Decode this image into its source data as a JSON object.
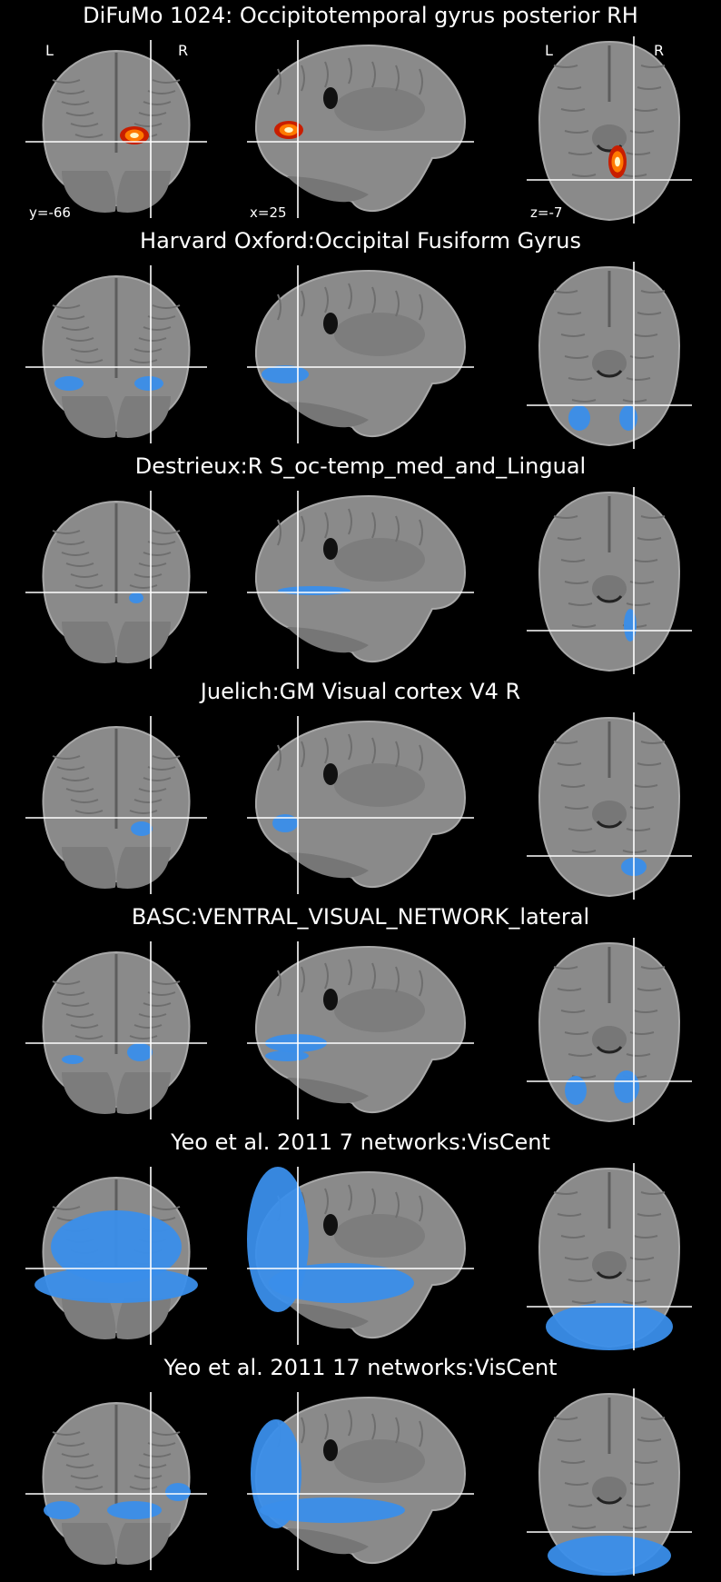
{
  "panels": [
    {
      "title": "DiFuMo 1024: Occipitotemporal gyrus posterior RH",
      "overlay": "heat",
      "variant": 0
    },
    {
      "title": "Harvard Oxford:Occipital Fusiform Gyrus",
      "overlay": "blue",
      "variant": 1
    },
    {
      "title": "Destrieux:R S_oc-temp_med_and_Lingual",
      "overlay": "blue",
      "variant": 2
    },
    {
      "title": "Juelich:GM Visual cortex V4 R",
      "overlay": "blue",
      "variant": 3
    },
    {
      "title": "BASC:VENTRAL_VISUAL_NETWORK_lateral",
      "overlay": "blue",
      "variant": 4
    },
    {
      "title": "Yeo et al. 2011 7 networks:VisCent",
      "overlay": "blue",
      "variant": 5
    },
    {
      "title": "Yeo et al. 2011 17 networks:VisCent",
      "overlay": "blue",
      "variant": 6
    }
  ],
  "orientation": {
    "left": "L",
    "right": "R"
  },
  "coords": {
    "coronal": "y=-66",
    "sagittal": "x=25",
    "axial": "z=-7"
  },
  "colors": {
    "background": "#000000",
    "brain": "#8a8a8a",
    "brain_edge": "#a8a8a8",
    "crosshair": "#ffffff",
    "overlay_blue": "#3a8eea",
    "heat_outer": "#c81e00",
    "heat_mid": "#ff7a00",
    "heat_inner": "#fff6c8"
  }
}
